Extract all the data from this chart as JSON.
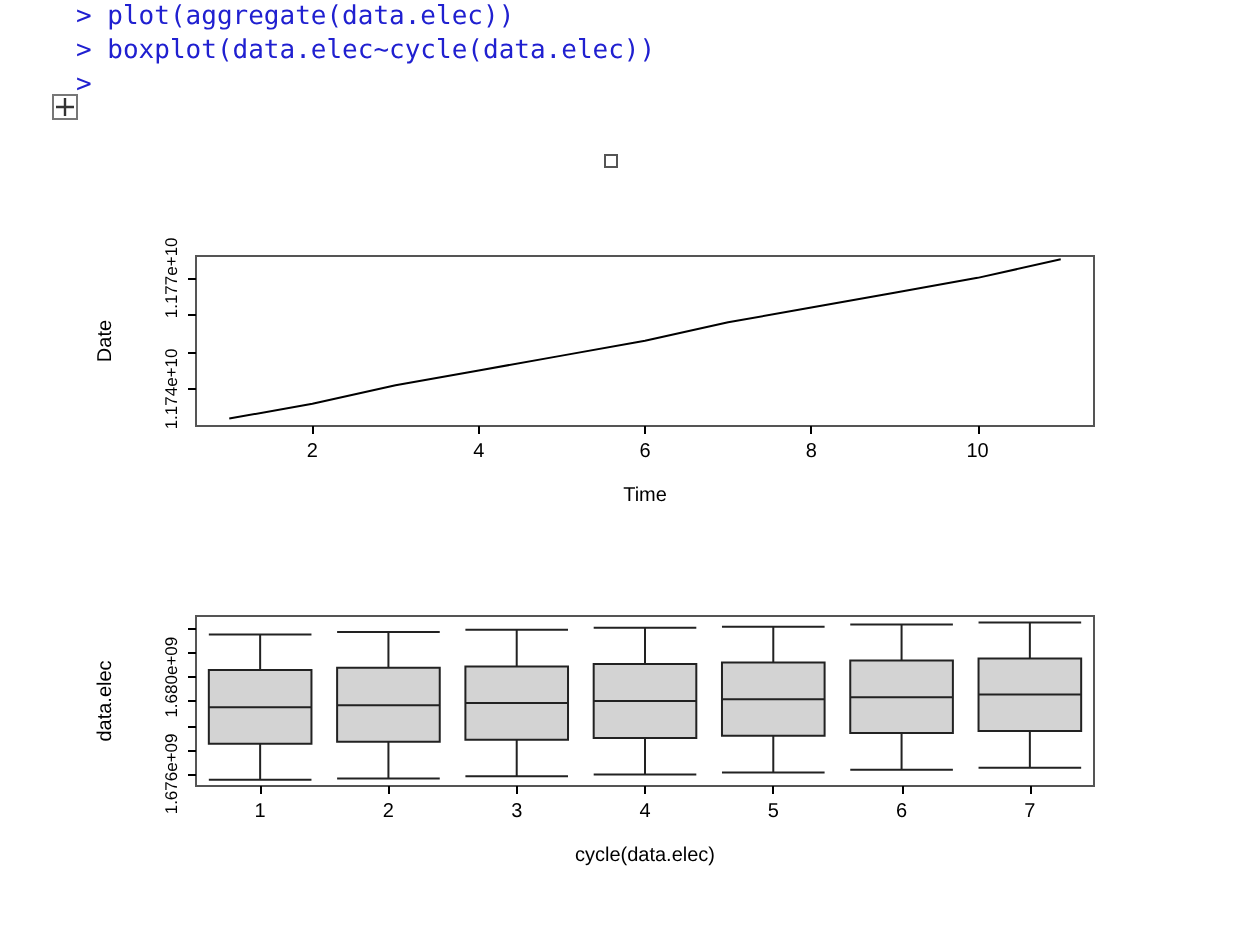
{
  "chart_data": [
    {
      "type": "line",
      "annotations": [
        "> plot(aggregate(data.elec))",
        "> boxplot(data.elec~cycle(data.elec))",
        ">"
      ],
      "xlabel": "Time",
      "ylabel": "Date",
      "marker": "none",
      "color": "#000000",
      "x": [
        1,
        2,
        3,
        4,
        5,
        6,
        7,
        8,
        9,
        10,
        11
      ],
      "values": [
        11732000000,
        11736000000,
        11741000000,
        11745000000,
        11749000000,
        11753000000,
        11758000000,
        11762000000,
        11766000000,
        11770000000,
        11775000000
      ],
      "xlim": [
        0.6,
        11.4
      ],
      "xticks": [
        2,
        4,
        6,
        8,
        10
      ],
      "ylim": [
        11730000000,
        11775900000
      ],
      "yticks": [
        {
          "value": 11740000000,
          "label": "1.174e+10"
        },
        {
          "value": 11750000000,
          "label": null
        },
        {
          "value": 11760000000,
          "label": null
        },
        {
          "value": 11770000000,
          "label": "1.177e+10"
        }
      ]
    },
    {
      "type": "box",
      "xlabel": "cycle(data.elec)",
      "ylabel": "data.elec",
      "color": "#d3d3d3",
      "categories": [
        "1",
        "2",
        "3",
        "4",
        "5",
        "6",
        "7"
      ],
      "boxes": [
        {
          "low": 1675760000,
          "q1": 1677250000,
          "median": 1678760000,
          "q3": 1680300000,
          "high": 1681760000
        },
        {
          "low": 1675810000,
          "q1": 1677330000,
          "median": 1678840000,
          "q3": 1680390000,
          "high": 1681870000
        },
        {
          "low": 1675900000,
          "q1": 1677410000,
          "median": 1678930000,
          "q3": 1680440000,
          "high": 1681960000
        },
        {
          "low": 1675980000,
          "q1": 1677490000,
          "median": 1679010000,
          "q3": 1680550000,
          "high": 1682040000
        },
        {
          "low": 1676060000,
          "q1": 1677580000,
          "median": 1679090000,
          "q3": 1680610000,
          "high": 1682090000
        },
        {
          "low": 1676170000,
          "q1": 1677690000,
          "median": 1679170000,
          "q3": 1680690000,
          "high": 1682180000
        },
        {
          "low": 1676250000,
          "q1": 1677770000,
          "median": 1679280000,
          "q3": 1680770000,
          "high": 1682260000
        }
      ],
      "ylim": [
        1675500000,
        1682530000
      ],
      "yticks": [
        {
          "value": 1676000000,
          "label": "1.676e+09"
        },
        {
          "value": 1677000000,
          "label": null
        },
        {
          "value": 1678000000,
          "label": null
        },
        {
          "value": 1679000000,
          "label": null
        },
        {
          "value": 1680000000,
          "label": "1.680e+09"
        },
        {
          "value": 1681000000,
          "label": null
        },
        {
          "value": 1682000000,
          "label": null
        }
      ]
    }
  ]
}
